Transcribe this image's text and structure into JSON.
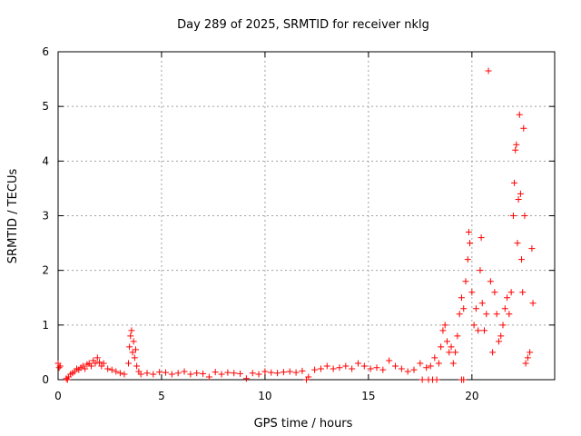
{
  "chart_data": {
    "type": "scatter",
    "title": "Day 289 of 2025, SRMTID for receiver nklg",
    "xlabel": "GPS time / hours",
    "ylabel": "SRMTID / TECUs",
    "xlim": [
      0,
      24
    ],
    "ylim": [
      0,
      6
    ],
    "xticks": [
      0,
      5,
      10,
      15,
      20
    ],
    "yticks": [
      0,
      1,
      2,
      3,
      4,
      5,
      6
    ],
    "xtick_labels": [
      "0",
      "5",
      "10",
      "15",
      "20"
    ],
    "ytick_labels": [
      "0",
      "1",
      "2",
      "3",
      "4",
      "5",
      "6"
    ],
    "grid": true,
    "marker": "+",
    "colors": {
      "points": "#ff0000",
      "grid": "#a0a0a0",
      "frame": "#000000"
    },
    "series": [
      {
        "name": "SRMTID",
        "points": [
          [
            0.0,
            0.3
          ],
          [
            0.05,
            0.22
          ],
          [
            0.1,
            0.25
          ],
          [
            0.4,
            0.02
          ],
          [
            0.5,
            0.05
          ],
          [
            0.6,
            0.1
          ],
          [
            0.7,
            0.12
          ],
          [
            0.8,
            0.15
          ],
          [
            0.9,
            0.2
          ],
          [
            1.0,
            0.18
          ],
          [
            1.1,
            0.22
          ],
          [
            1.2,
            0.25
          ],
          [
            1.3,
            0.2
          ],
          [
            1.4,
            0.28
          ],
          [
            1.5,
            0.3
          ],
          [
            1.6,
            0.25
          ],
          [
            1.7,
            0.35
          ],
          [
            1.8,
            0.3
          ],
          [
            1.9,
            0.4
          ],
          [
            2.0,
            0.32
          ],
          [
            2.1,
            0.25
          ],
          [
            2.2,
            0.3
          ],
          [
            2.4,
            0.2
          ],
          [
            2.6,
            0.18
          ],
          [
            2.8,
            0.15
          ],
          [
            3.0,
            0.12
          ],
          [
            3.2,
            0.1
          ],
          [
            3.4,
            0.3
          ],
          [
            3.45,
            0.6
          ],
          [
            3.5,
            0.8
          ],
          [
            3.55,
            0.9
          ],
          [
            3.6,
            0.5
          ],
          [
            3.65,
            0.7
          ],
          [
            3.7,
            0.4
          ],
          [
            3.75,
            0.55
          ],
          [
            3.8,
            0.25
          ],
          [
            3.9,
            0.15
          ],
          [
            4.0,
            0.1
          ],
          [
            4.3,
            0.12
          ],
          [
            4.6,
            0.1
          ],
          [
            4.9,
            0.14
          ],
          [
            5.2,
            0.13
          ],
          [
            5.5,
            0.1
          ],
          [
            5.8,
            0.12
          ],
          [
            6.1,
            0.15
          ],
          [
            6.4,
            0.1
          ],
          [
            6.7,
            0.12
          ],
          [
            7.0,
            0.11
          ],
          [
            7.3,
            0.05
          ],
          [
            7.6,
            0.14
          ],
          [
            7.9,
            0.1
          ],
          [
            8.2,
            0.13
          ],
          [
            8.5,
            0.12
          ],
          [
            8.8,
            0.11
          ],
          [
            9.1,
            0.02
          ],
          [
            9.4,
            0.12
          ],
          [
            9.7,
            0.1
          ],
          [
            10.0,
            0.15
          ],
          [
            10.3,
            0.13
          ],
          [
            10.6,
            0.12
          ],
          [
            10.9,
            0.14
          ],
          [
            11.2,
            0.15
          ],
          [
            11.5,
            0.13
          ],
          [
            11.8,
            0.16
          ],
          [
            12.1,
            0.05
          ],
          [
            12.4,
            0.18
          ],
          [
            12.7,
            0.2
          ],
          [
            13.0,
            0.25
          ],
          [
            13.3,
            0.2
          ],
          [
            13.6,
            0.22
          ],
          [
            13.9,
            0.25
          ],
          [
            14.2,
            0.2
          ],
          [
            14.5,
            0.3
          ],
          [
            14.8,
            0.25
          ],
          [
            15.1,
            0.2
          ],
          [
            15.4,
            0.22
          ],
          [
            15.7,
            0.18
          ],
          [
            16.0,
            0.35
          ],
          [
            16.3,
            0.25
          ],
          [
            16.6,
            0.2
          ],
          [
            16.9,
            0.15
          ],
          [
            17.2,
            0.18
          ],
          [
            17.5,
            0.3
          ],
          [
            17.8,
            0.22
          ],
          [
            18.0,
            0.25
          ],
          [
            18.2,
            0.4
          ],
          [
            18.4,
            0.3
          ],
          [
            18.5,
            0.6
          ],
          [
            18.6,
            0.9
          ],
          [
            18.7,
            1.0
          ],
          [
            18.8,
            0.7
          ],
          [
            18.9,
            0.5
          ],
          [
            19.0,
            0.6
          ],
          [
            19.1,
            0.3
          ],
          [
            19.2,
            0.5
          ],
          [
            19.3,
            0.8
          ],
          [
            19.4,
            1.2
          ],
          [
            19.5,
            1.5
          ],
          [
            19.6,
            1.3
          ],
          [
            19.7,
            1.8
          ],
          [
            19.8,
            2.2
          ],
          [
            19.85,
            2.7
          ],
          [
            19.9,
            2.5
          ],
          [
            20.0,
            1.6
          ],
          [
            20.1,
            1.0
          ],
          [
            20.2,
            1.3
          ],
          [
            20.3,
            0.9
          ],
          [
            20.4,
            2.0
          ],
          [
            20.45,
            2.6
          ],
          [
            20.5,
            1.4
          ],
          [
            20.6,
            0.9
          ],
          [
            20.7,
            1.2
          ],
          [
            20.8,
            5.65
          ],
          [
            20.9,
            1.8
          ],
          [
            21.0,
            0.5
          ],
          [
            21.1,
            1.6
          ],
          [
            21.2,
            1.2
          ],
          [
            21.3,
            0.7
          ],
          [
            21.4,
            0.8
          ],
          [
            21.5,
            1.0
          ],
          [
            21.6,
            1.3
          ],
          [
            21.7,
            1.5
          ],
          [
            21.8,
            1.2
          ],
          [
            21.9,
            1.6
          ],
          [
            22.0,
            3.0
          ],
          [
            22.05,
            3.6
          ],
          [
            22.1,
            4.2
          ],
          [
            22.15,
            4.3
          ],
          [
            22.2,
            2.5
          ],
          [
            22.25,
            3.3
          ],
          [
            22.3,
            4.85
          ],
          [
            22.35,
            3.4
          ],
          [
            22.4,
            2.2
          ],
          [
            22.45,
            1.6
          ],
          [
            22.5,
            4.6
          ],
          [
            22.55,
            3.0
          ],
          [
            22.6,
            0.3
          ],
          [
            22.7,
            0.4
          ],
          [
            22.8,
            0.5
          ],
          [
            22.9,
            2.4
          ],
          [
            22.95,
            1.4
          ],
          [
            17.6,
            0.0
          ],
          [
            17.9,
            0.0
          ],
          [
            18.1,
            0.0
          ],
          [
            18.3,
            0.0
          ],
          [
            19.5,
            0.0
          ],
          [
            19.6,
            0.0
          ],
          [
            12.0,
            0.0
          ],
          [
            0.45,
            0.0
          ]
        ]
      }
    ]
  }
}
